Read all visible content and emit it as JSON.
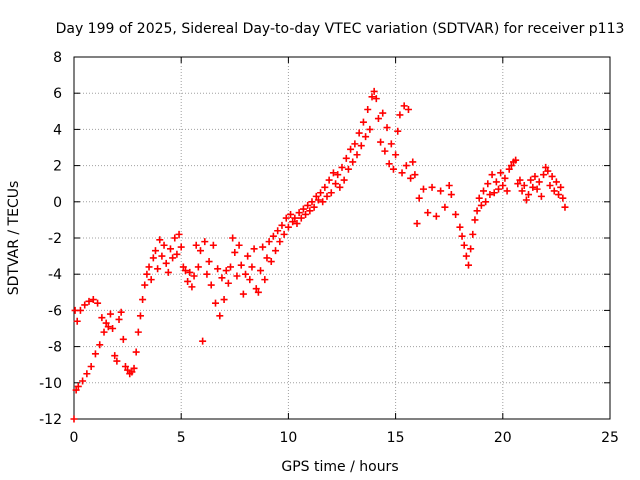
{
  "chart_data": {
    "type": "scatter",
    "title": "Day 199 of 2025, Sidereal Day-to-day VTEC variation (SDTVAR) for receiver p113",
    "xlabel": "GPS time / hours",
    "ylabel": "SDTVAR / TECUs",
    "xlim": [
      0,
      25
    ],
    "ylim": [
      -12,
      8
    ],
    "xticks": [
      0,
      5,
      10,
      15,
      20,
      25
    ],
    "yticks": [
      -12,
      -10,
      -8,
      -6,
      -4,
      -2,
      0,
      2,
      4,
      6,
      8
    ],
    "grid": true,
    "marker": "+",
    "color": "#ff0000",
    "series": [
      {
        "name": "SDTVAR",
        "points": [
          [
            0.0,
            -12.0
          ],
          [
            0.05,
            -6.0
          ],
          [
            0.1,
            -10.4
          ],
          [
            0.15,
            -6.6
          ],
          [
            0.2,
            -10.2
          ],
          [
            0.3,
            -6.0
          ],
          [
            0.4,
            -9.9
          ],
          [
            0.5,
            -5.7
          ],
          [
            0.6,
            -9.5
          ],
          [
            0.7,
            -5.5
          ],
          [
            0.8,
            -9.1
          ],
          [
            0.9,
            -5.4
          ],
          [
            1.0,
            -8.4
          ],
          [
            1.1,
            -5.6
          ],
          [
            1.2,
            -7.9
          ],
          [
            1.3,
            -6.4
          ],
          [
            1.4,
            -7.2
          ],
          [
            1.5,
            -6.7
          ],
          [
            1.6,
            -6.9
          ],
          [
            1.7,
            -6.2
          ],
          [
            1.8,
            -7.0
          ],
          [
            1.9,
            -8.5
          ],
          [
            2.0,
            -8.8
          ],
          [
            2.1,
            -6.5
          ],
          [
            2.2,
            -6.1
          ],
          [
            2.3,
            -7.6
          ],
          [
            2.4,
            -9.1
          ],
          [
            2.5,
            -9.3
          ],
          [
            2.6,
            -9.5
          ],
          [
            2.7,
            -9.4
          ],
          [
            2.8,
            -9.2
          ],
          [
            2.9,
            -8.3
          ],
          [
            3.0,
            -7.2
          ],
          [
            3.1,
            -6.3
          ],
          [
            3.2,
            -5.4
          ],
          [
            3.3,
            -4.6
          ],
          [
            3.4,
            -4.0
          ],
          [
            3.5,
            -3.6
          ],
          [
            3.6,
            -4.3
          ],
          [
            3.7,
            -3.1
          ],
          [
            3.8,
            -2.7
          ],
          [
            3.9,
            -3.7
          ],
          [
            4.0,
            -2.1
          ],
          [
            4.1,
            -3.0
          ],
          [
            4.2,
            -2.4
          ],
          [
            4.3,
            -3.4
          ],
          [
            4.4,
            -3.9
          ],
          [
            4.5,
            -2.6
          ],
          [
            4.6,
            -3.1
          ],
          [
            4.7,
            -2.0
          ],
          [
            4.8,
            -2.9
          ],
          [
            4.9,
            -1.8
          ],
          [
            5.0,
            -2.5
          ],
          [
            5.1,
            -3.6
          ],
          [
            5.2,
            -3.8
          ],
          [
            5.3,
            -4.4
          ],
          [
            5.4,
            -3.9
          ],
          [
            5.5,
            -4.7
          ],
          [
            5.6,
            -4.1
          ],
          [
            5.7,
            -2.4
          ],
          [
            5.8,
            -3.6
          ],
          [
            5.9,
            -2.7
          ],
          [
            6.0,
            -7.7
          ],
          [
            6.1,
            -2.2
          ],
          [
            6.2,
            -4.0
          ],
          [
            6.3,
            -3.3
          ],
          [
            6.4,
            -4.6
          ],
          [
            6.5,
            -2.4
          ],
          [
            6.6,
            -5.6
          ],
          [
            6.7,
            -3.7
          ],
          [
            6.8,
            -6.3
          ],
          [
            6.9,
            -4.2
          ],
          [
            7.0,
            -5.4
          ],
          [
            7.1,
            -3.8
          ],
          [
            7.2,
            -4.5
          ],
          [
            7.3,
            -3.6
          ],
          [
            7.4,
            -2.0
          ],
          [
            7.5,
            -2.8
          ],
          [
            7.6,
            -4.1
          ],
          [
            7.7,
            -2.4
          ],
          [
            7.8,
            -3.5
          ],
          [
            7.9,
            -5.1
          ],
          [
            8.0,
            -4.0
          ],
          [
            8.1,
            -3.0
          ],
          [
            8.2,
            -4.3
          ],
          [
            8.3,
            -3.6
          ],
          [
            8.4,
            -2.6
          ],
          [
            8.5,
            -4.8
          ],
          [
            8.6,
            -5.0
          ],
          [
            8.7,
            -3.8
          ],
          [
            8.8,
            -2.5
          ],
          [
            8.9,
            -4.3
          ],
          [
            9.0,
            -3.1
          ],
          [
            9.1,
            -2.2
          ],
          [
            9.2,
            -3.3
          ],
          [
            9.3,
            -1.9
          ],
          [
            9.4,
            -2.7
          ],
          [
            9.5,
            -1.6
          ],
          [
            9.6,
            -2.2
          ],
          [
            9.7,
            -1.3
          ],
          [
            9.8,
            -1.8
          ],
          [
            9.9,
            -0.9
          ],
          [
            10.0,
            -1.4
          ],
          [
            10.1,
            -0.7
          ],
          [
            10.2,
            -1.1
          ],
          [
            10.3,
            -0.9
          ],
          [
            10.4,
            -1.2
          ],
          [
            10.5,
            -0.6
          ],
          [
            10.6,
            -0.9
          ],
          [
            10.7,
            -0.4
          ],
          [
            10.8,
            -0.7
          ],
          [
            10.9,
            -0.2
          ],
          [
            11.0,
            -0.5
          ],
          [
            11.1,
            0.0
          ],
          [
            11.2,
            -0.3
          ],
          [
            11.3,
            0.3
          ],
          [
            11.4,
            0.1
          ],
          [
            11.5,
            0.5
          ],
          [
            11.6,
            0.0
          ],
          [
            11.7,
            0.8
          ],
          [
            11.8,
            0.3
          ],
          [
            11.9,
            1.2
          ],
          [
            12.0,
            0.5
          ],
          [
            12.1,
            1.6
          ],
          [
            12.2,
            1.0
          ],
          [
            12.3,
            1.5
          ],
          [
            12.4,
            0.8
          ],
          [
            12.5,
            1.9
          ],
          [
            12.6,
            1.2
          ],
          [
            12.7,
            2.4
          ],
          [
            12.8,
            1.8
          ],
          [
            12.9,
            2.9
          ],
          [
            13.0,
            2.2
          ],
          [
            13.1,
            3.2
          ],
          [
            13.2,
            2.6
          ],
          [
            13.3,
            3.8
          ],
          [
            13.4,
            3.1
          ],
          [
            13.5,
            4.4
          ],
          [
            13.6,
            3.6
          ],
          [
            13.7,
            5.1
          ],
          [
            13.8,
            4.0
          ],
          [
            13.9,
            5.8
          ],
          [
            14.0,
            6.1
          ],
          [
            14.1,
            5.7
          ],
          [
            14.2,
            4.6
          ],
          [
            14.3,
            3.3
          ],
          [
            14.4,
            4.9
          ],
          [
            14.5,
            2.8
          ],
          [
            14.6,
            4.1
          ],
          [
            14.7,
            2.1
          ],
          [
            14.8,
            3.2
          ],
          [
            14.9,
            1.8
          ],
          [
            15.0,
            2.6
          ],
          [
            15.1,
            3.9
          ],
          [
            15.2,
            4.8
          ],
          [
            15.3,
            1.6
          ],
          [
            15.4,
            5.3
          ],
          [
            15.5,
            2.0
          ],
          [
            15.6,
            5.1
          ],
          [
            15.7,
            1.3
          ],
          [
            15.8,
            2.2
          ],
          [
            15.9,
            1.5
          ],
          [
            16.0,
            -1.2
          ],
          [
            16.1,
            0.2
          ],
          [
            16.3,
            0.7
          ],
          [
            16.5,
            -0.6
          ],
          [
            16.7,
            0.8
          ],
          [
            16.9,
            -0.8
          ],
          [
            17.1,
            0.6
          ],
          [
            17.3,
            -0.3
          ],
          [
            17.5,
            0.9
          ],
          [
            17.6,
            0.4
          ],
          [
            17.8,
            -0.7
          ],
          [
            18.0,
            -1.4
          ],
          [
            18.1,
            -1.9
          ],
          [
            18.2,
            -2.4
          ],
          [
            18.3,
            -3.0
          ],
          [
            18.4,
            -3.5
          ],
          [
            18.5,
            -2.6
          ],
          [
            18.6,
            -1.8
          ],
          [
            18.7,
            -1.0
          ],
          [
            18.8,
            -0.5
          ],
          [
            18.9,
            0.2
          ],
          [
            19.0,
            -0.2
          ],
          [
            19.1,
            0.6
          ],
          [
            19.2,
            0.0
          ],
          [
            19.3,
            1.0
          ],
          [
            19.4,
            0.4
          ],
          [
            19.5,
            1.5
          ],
          [
            19.6,
            0.5
          ],
          [
            19.7,
            1.1
          ],
          [
            19.8,
            0.7
          ],
          [
            19.9,
            1.6
          ],
          [
            20.0,
            0.9
          ],
          [
            20.1,
            1.3
          ],
          [
            20.2,
            0.6
          ],
          [
            20.3,
            1.8
          ],
          [
            20.4,
            2.0
          ],
          [
            20.5,
            2.2
          ],
          [
            20.6,
            2.3
          ],
          [
            20.7,
            1.0
          ],
          [
            20.8,
            1.2
          ],
          [
            20.9,
            0.6
          ],
          [
            21.0,
            0.9
          ],
          [
            21.1,
            0.1
          ],
          [
            21.2,
            0.4
          ],
          [
            21.3,
            1.2
          ],
          [
            21.4,
            0.8
          ],
          [
            21.5,
            1.4
          ],
          [
            21.6,
            0.7
          ],
          [
            21.7,
            1.1
          ],
          [
            21.8,
            0.3
          ],
          [
            21.9,
            1.5
          ],
          [
            22.0,
            1.9
          ],
          [
            22.1,
            1.7
          ],
          [
            22.2,
            0.9
          ],
          [
            22.3,
            1.4
          ],
          [
            22.4,
            0.6
          ],
          [
            22.5,
            1.1
          ],
          [
            22.6,
            0.4
          ],
          [
            22.7,
            0.8
          ],
          [
            22.8,
            0.2
          ],
          [
            22.9,
            -0.3
          ]
        ]
      }
    ]
  }
}
